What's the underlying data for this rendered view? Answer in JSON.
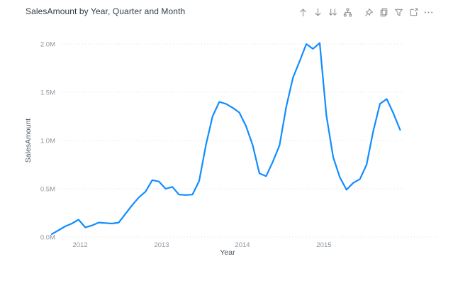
{
  "header": {
    "title": "SalesAmount by Year, Quarter and Month",
    "icons": [
      "drill-up-icon",
      "drill-down-icon",
      "go-to-next-level-icon",
      "expand-all-icon",
      "pin-visual-icon",
      "copy-icon",
      "filter-icon",
      "focus-mode-icon",
      "more-options-icon"
    ]
  },
  "chart_data": {
    "type": "line",
    "title": "SalesAmount by Year, Quarter and Month",
    "xlabel": "Year",
    "ylabel": "SalesAmount",
    "x_tick_labels": [
      "2012",
      "2013",
      "2014",
      "2015"
    ],
    "y_tick_labels": [
      "0.0M",
      "0.5M",
      "1.0M",
      "1.5M",
      "2.0M"
    ],
    "ylim": [
      0,
      2.0
    ],
    "grid": "dotted-horizontal",
    "legend": "none",
    "line_color": "#118DFF",
    "categories": [
      "Aug 2011",
      "Sep 2011",
      "Oct 2011",
      "Nov 2011",
      "Dec 2011",
      "Jan 2012",
      "Feb 2012",
      "Mar 2012",
      "Apr 2012",
      "May 2012",
      "Jun 2012",
      "Jul 2012",
      "Aug 2012",
      "Sep 2012",
      "Oct 2012",
      "Nov 2012",
      "Dec 2012",
      "Jan 2013",
      "Feb 2013",
      "Mar 2013",
      "Apr 2013",
      "May 2013",
      "Jun 2013",
      "Jul 2013",
      "Aug 2013",
      "Sep 2013",
      "Oct 2013",
      "Nov 2013",
      "Dec 2013",
      "Jan 2014",
      "Feb 2014",
      "Mar 2014",
      "Apr 2014",
      "May 2014",
      "Jun 2014",
      "Jul 2014",
      "Aug 2014",
      "Sep 2014",
      "Oct 2014",
      "Nov 2014",
      "Dec 2014",
      "Jan 2015",
      "Feb 2015",
      "Mar 2015",
      "Apr 2015",
      "May 2015",
      "Jun 2015",
      "Jul 2015",
      "Aug 2015",
      "Sep 2015",
      "Oct 2015",
      "Nov 2015",
      "Dec 2015"
    ],
    "values": [
      0.03,
      0.07,
      0.11,
      0.14,
      0.18,
      0.1,
      0.12,
      0.15,
      0.145,
      0.14,
      0.15,
      0.24,
      0.33,
      0.41,
      0.47,
      0.59,
      0.575,
      0.5,
      0.52,
      0.44,
      0.435,
      0.44,
      0.58,
      0.95,
      1.25,
      1.4,
      1.38,
      1.34,
      1.29,
      1.15,
      0.95,
      0.66,
      0.63,
      0.78,
      0.95,
      1.35,
      1.65,
      1.82,
      2.0,
      1.95,
      2.01,
      1.26,
      0.83,
      0.62,
      0.49,
      0.56,
      0.6,
      0.75,
      1.1,
      1.38,
      1.43,
      1.28,
      1.11
    ],
    "units": "millions"
  },
  "colors": {
    "accent": "#118DFF",
    "title_text": "#2F3B4A",
    "axis_tick_text": "#8C96A3",
    "axis_title_text": "#4F5A66",
    "icon": "#8A8A8A",
    "gridline": "#DCE0E5",
    "background": "#FFFFFF"
  }
}
